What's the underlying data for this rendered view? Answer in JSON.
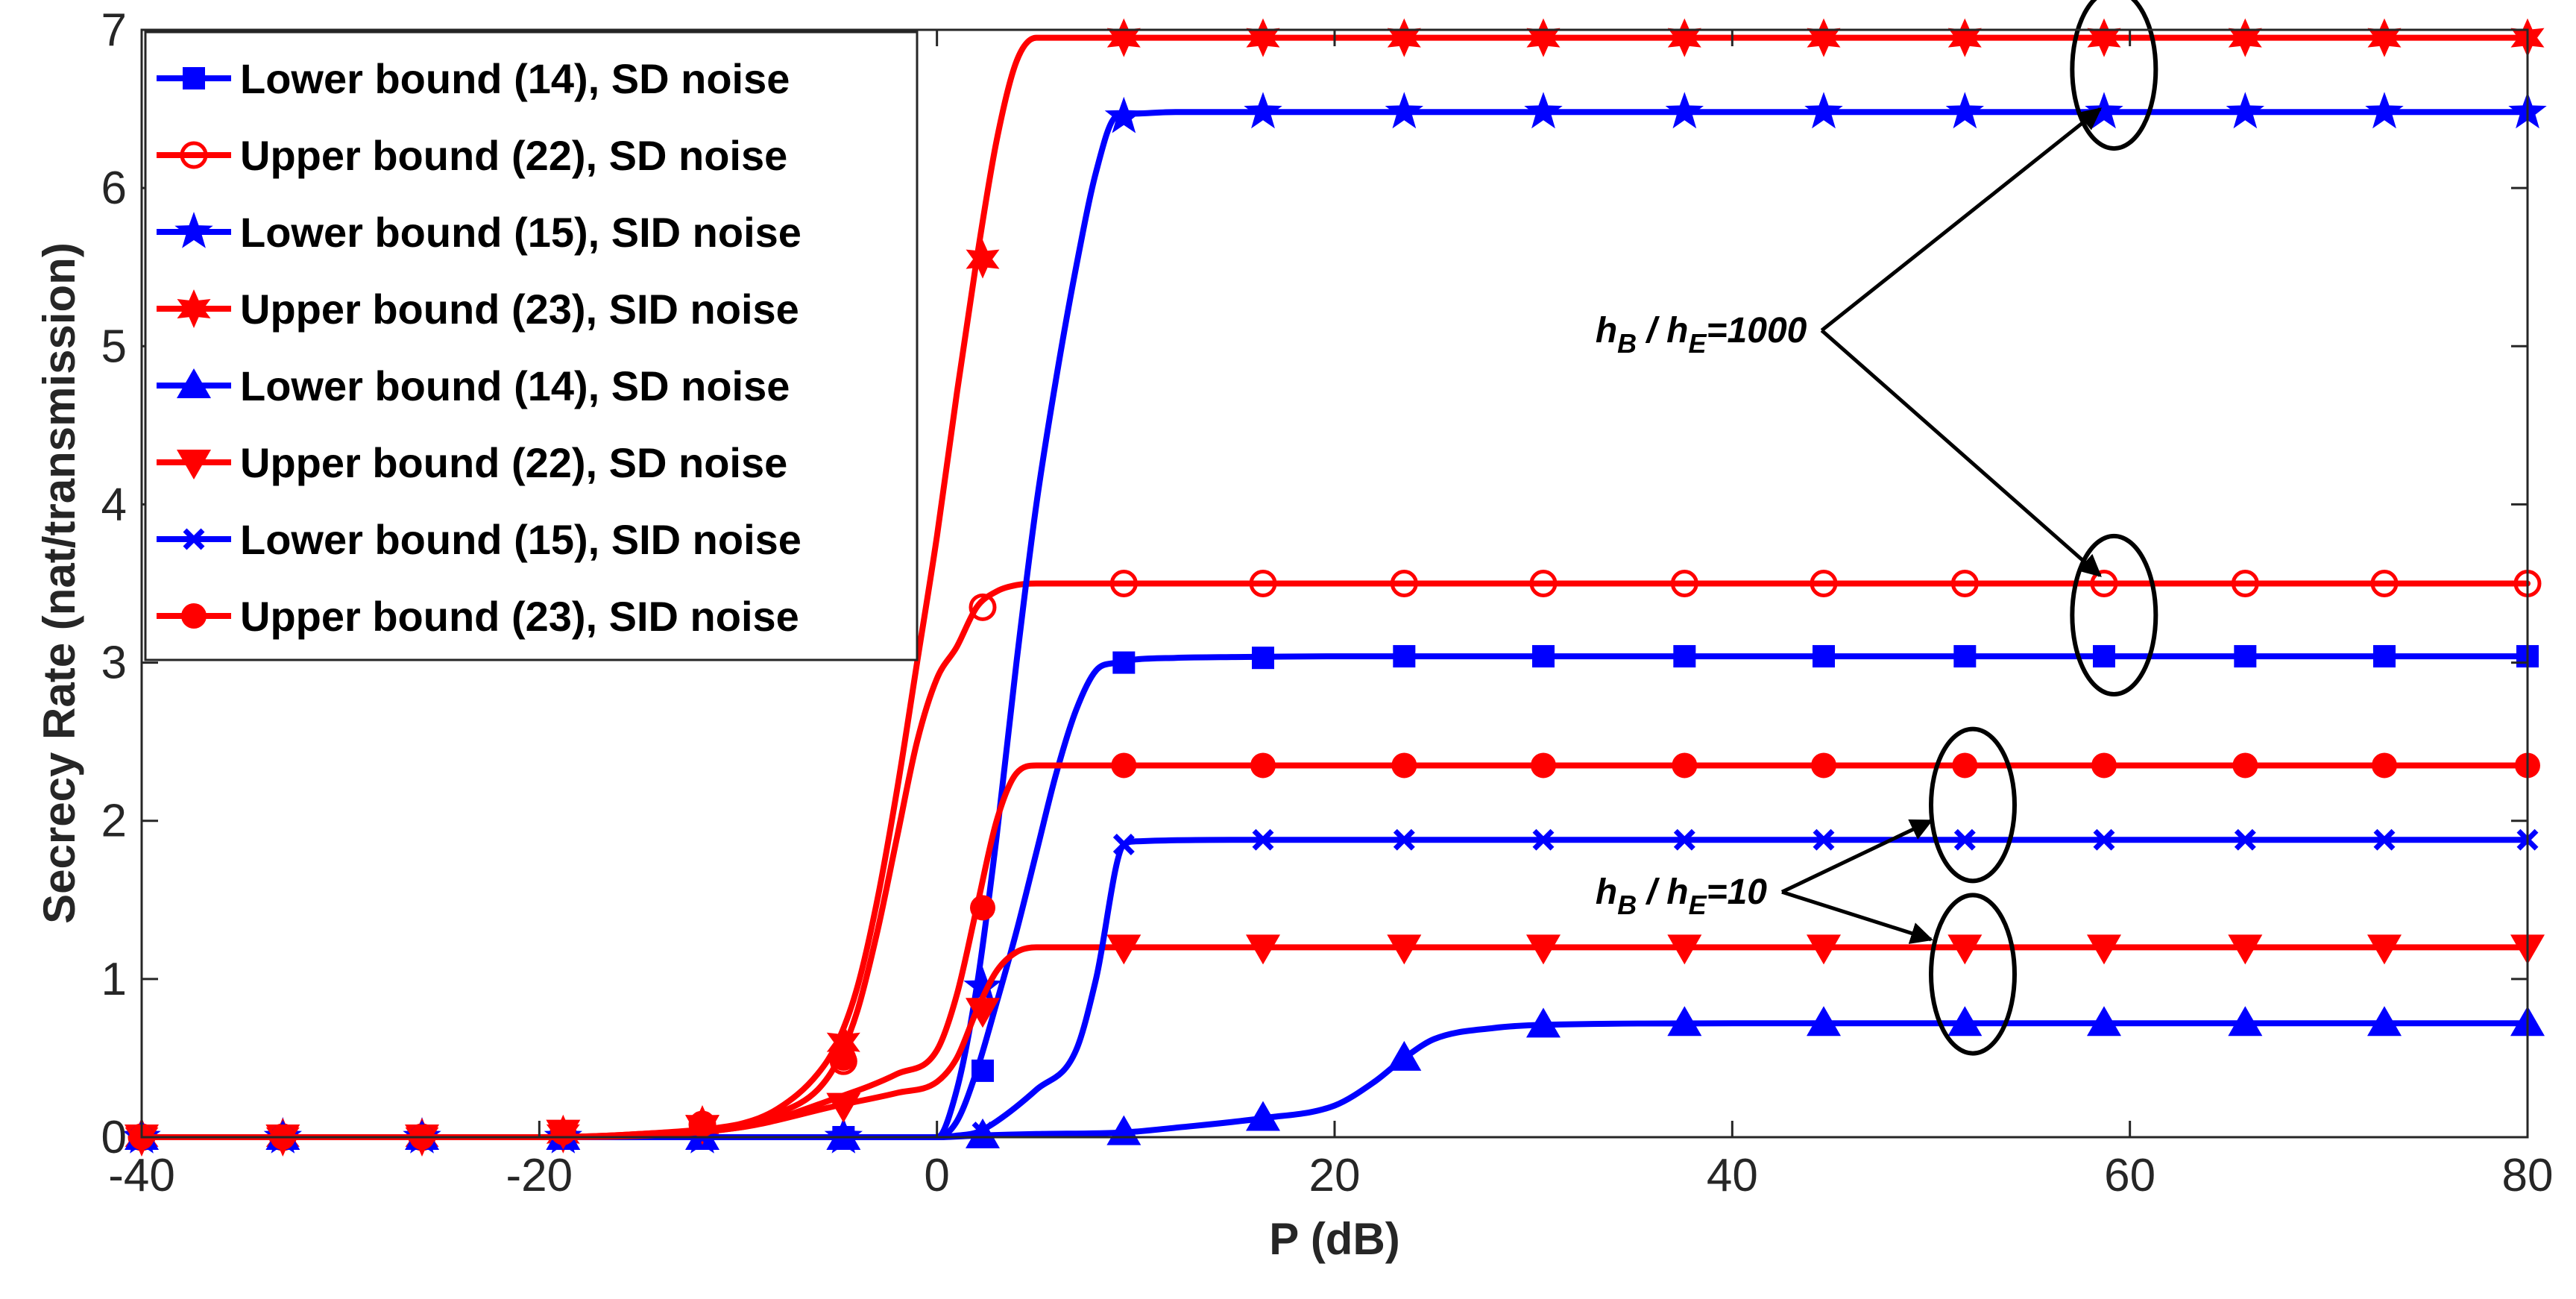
{
  "chart_data": {
    "type": "line",
    "title": "",
    "xlabel": "P (dB)",
    "ylabel": "Secrecy Rate (nat/transmission)",
    "xlim": [
      -40,
      80
    ],
    "ylim": [
      0,
      7
    ],
    "grid": false,
    "legend_position": "top-left",
    "xticks": [
      -40,
      -20,
      0,
      20,
      40,
      60,
      80
    ],
    "yticks": [
      0,
      1,
      2,
      3,
      4,
      5,
      6,
      7
    ],
    "xtick_labels": [
      "-40",
      "-20",
      "0",
      "20",
      "40",
      "60",
      "80"
    ],
    "ytick_labels": [
      "0",
      "1",
      "2",
      "3",
      "4",
      "5",
      "6",
      "7"
    ],
    "series": [
      {
        "name": "Lower bound (14), SD noise",
        "color": "#0000FF",
        "marker": "square",
        "x": [
          -40,
          -38,
          -36,
          -34,
          -32,
          -30,
          -28,
          -26,
          -24,
          -22,
          -20,
          -18,
          -16,
          -14,
          -12,
          -10,
          -8,
          -6,
          -4,
          -2,
          0,
          1,
          2,
          3,
          4,
          5,
          6,
          7,
          8,
          9,
          10,
          12,
          15,
          20,
          30,
          40,
          60,
          80
        ],
        "y": [
          0,
          0,
          0,
          0,
          0,
          0,
          0,
          0,
          0,
          0,
          0,
          0,
          0,
          0,
          0,
          0,
          0,
          0,
          0,
          0,
          0,
          0.1,
          0.42,
          0.85,
          1.3,
          1.8,
          2.3,
          2.7,
          2.95,
          3.0,
          3.02,
          3.03,
          3.035,
          3.04,
          3.04,
          3.04,
          3.04,
          3.04
        ],
        "marker_x": [
          -40,
          -32.9,
          -25.9,
          -18.8,
          -11.8,
          -4.7,
          2.3,
          9.4,
          16.4,
          23.5,
          30.5,
          37.6,
          44.6,
          51.7,
          58.7,
          65.8,
          72.8,
          80
        ],
        "marker_y": [
          0,
          0,
          0,
          0,
          0,
          0,
          0.42,
          3.0,
          3.03,
          3.04,
          3.04,
          3.04,
          3.04,
          3.04,
          3.04,
          3.04,
          3.04,
          3.04
        ]
      },
      {
        "name": "Upper bound (22), SD noise",
        "color": "#FF0000",
        "marker": "circle-open",
        "x": [
          -40,
          -30,
          -20,
          -15,
          -10,
          -8,
          -6,
          -5,
          -4,
          -3,
          -2,
          -1,
          0,
          1,
          2,
          3,
          4,
          5,
          6,
          8,
          10,
          20,
          40,
          60,
          80
        ],
        "y": [
          0,
          0,
          0,
          0.02,
          0.08,
          0.15,
          0.3,
          0.48,
          0.8,
          1.3,
          1.9,
          2.5,
          2.9,
          3.1,
          3.35,
          3.45,
          3.49,
          3.5,
          3.5,
          3.5,
          3.5,
          3.5,
          3.5,
          3.5,
          3.5
        ],
        "marker_x": [
          -40,
          -32.9,
          -25.9,
          -18.8,
          -11.8,
          -4.7,
          2.3,
          9.4,
          16.4,
          23.5,
          30.5,
          37.6,
          44.6,
          51.7,
          58.7,
          65.8,
          72.8,
          80
        ],
        "marker_y": [
          0,
          0,
          0,
          0.02,
          0.08,
          0.48,
          3.35,
          3.5,
          3.5,
          3.5,
          3.5,
          3.5,
          3.5,
          3.5,
          3.5,
          3.5,
          3.5,
          3.5
        ]
      },
      {
        "name": "Lower bound (15), SID noise",
        "color": "#0000FF",
        "marker": "star5",
        "x": [
          -40,
          -30,
          -20,
          -10,
          -5,
          0,
          1,
          2,
          3,
          4,
          5,
          6,
          7,
          8,
          9,
          10,
          12,
          15,
          20,
          40,
          60,
          80
        ],
        "y": [
          0,
          0,
          0,
          0,
          0,
          0,
          0.3,
          0.95,
          1.9,
          3.0,
          4.0,
          4.8,
          5.5,
          6.1,
          6.45,
          6.47,
          6.48,
          6.48,
          6.48,
          6.48,
          6.48,
          6.48
        ],
        "marker_x": [
          -40,
          -32.9,
          -25.9,
          -18.8,
          -11.8,
          -4.7,
          2.3,
          9.4,
          16.4,
          23.5,
          30.5,
          37.6,
          44.6,
          51.7,
          58.7,
          65.8,
          72.8,
          80
        ],
        "marker_y": [
          0,
          0,
          0,
          0,
          0,
          0,
          0.95,
          6.45,
          6.48,
          6.48,
          6.48,
          6.48,
          6.48,
          6.48,
          6.48,
          6.48,
          6.48,
          6.48
        ]
      },
      {
        "name": "Upper bound (23), SID noise",
        "color": "#FF0000",
        "marker": "star6",
        "x": [
          -40,
          -30,
          -20,
          -15,
          -10,
          -8,
          -6,
          -5,
          -4,
          -3,
          -2,
          -1,
          0,
          1,
          2,
          3,
          4,
          5,
          6,
          8,
          10,
          20,
          40,
          60,
          80
        ],
        "y": [
          0,
          0,
          0,
          0.02,
          0.08,
          0.18,
          0.4,
          0.6,
          0.95,
          1.5,
          2.2,
          3.0,
          3.8,
          4.7,
          5.55,
          6.3,
          6.8,
          6.95,
          6.95,
          6.95,
          6.95,
          6.95,
          6.95,
          6.95,
          6.95
        ],
        "marker_x": [
          -40,
          -32.9,
          -25.9,
          -18.8,
          -11.8,
          -4.7,
          2.3,
          9.4,
          16.4,
          23.5,
          30.5,
          37.6,
          44.6,
          51.7,
          58.7,
          65.8,
          72.8,
          80
        ],
        "marker_y": [
          0,
          0,
          0,
          0.02,
          0.08,
          0.6,
          5.55,
          6.95,
          6.95,
          6.95,
          6.95,
          6.95,
          6.95,
          6.95,
          6.95,
          6.95,
          6.95,
          6.95
        ]
      },
      {
        "name": "Lower bound (14), SD noise",
        "color": "#0000FF",
        "marker": "triangle-up",
        "x": [
          -40,
          -20,
          -5,
          0,
          2,
          5,
          9.4,
          12,
          16.4,
          20,
          22,
          23.5,
          25,
          28,
          30.5,
          40,
          60,
          80
        ],
        "y": [
          0,
          0,
          0,
          0,
          0.01,
          0.02,
          0.03,
          0.06,
          0.12,
          0.2,
          0.35,
          0.5,
          0.62,
          0.69,
          0.71,
          0.72,
          0.72,
          0.72
        ],
        "marker_x": [
          -40,
          -32.9,
          -25.9,
          -18.8,
          -11.8,
          -4.7,
          2.3,
          9.4,
          16.4,
          23.5,
          30.5,
          37.6,
          44.6,
          51.7,
          58.7,
          65.8,
          72.8,
          80
        ],
        "marker_y": [
          0,
          0,
          0,
          0,
          0,
          0,
          0.01,
          0.03,
          0.12,
          0.5,
          0.71,
          0.72,
          0.72,
          0.72,
          0.72,
          0.72,
          0.72,
          0.72
        ]
      },
      {
        "name": "Upper bound (22), SD noise",
        "color": "#FF0000",
        "marker": "triangle-down",
        "x": [
          -40,
          -30,
          -20,
          -10,
          -5,
          -2,
          0,
          1,
          2,
          3,
          4,
          5,
          6,
          8,
          10,
          20,
          40,
          60,
          80
        ],
        "y": [
          0,
          0,
          0,
          0.06,
          0.2,
          0.28,
          0.35,
          0.5,
          0.8,
          1.05,
          1.17,
          1.2,
          1.2,
          1.2,
          1.2,
          1.2,
          1.2,
          1.2,
          1.2
        ],
        "marker_x": [
          -40,
          -32.9,
          -25.9,
          -18.8,
          -11.8,
          -4.7,
          2.3,
          9.4,
          16.4,
          23.5,
          30.5,
          37.6,
          44.6,
          51.7,
          58.7,
          65.8,
          72.8,
          80
        ],
        "marker_y": [
          0,
          0,
          0,
          0.03,
          0.06,
          0.2,
          0.8,
          1.2,
          1.2,
          1.2,
          1.2,
          1.2,
          1.2,
          1.2,
          1.2,
          1.2,
          1.2,
          1.2
        ]
      },
      {
        "name": "Lower bound (15), SID noise",
        "color": "#0000FF",
        "marker": "x",
        "x": [
          -40,
          -20,
          -5,
          0,
          1,
          2,
          3,
          5,
          7,
          8,
          9.4,
          10,
          15,
          20,
          40,
          60,
          80
        ],
        "y": [
          0,
          0,
          0,
          0,
          0.01,
          0.03,
          0.1,
          0.3,
          0.55,
          1.0,
          1.85,
          1.87,
          1.88,
          1.88,
          1.88,
          1.88,
          1.88
        ],
        "marker_x": [
          -40,
          -32.9,
          -25.9,
          -18.8,
          -11.8,
          -4.7,
          2.3,
          9.4,
          16.4,
          23.5,
          30.5,
          37.6,
          44.6,
          51.7,
          58.7,
          65.8,
          72.8,
          80
        ],
        "marker_y": [
          0,
          0,
          0,
          0,
          0,
          0,
          0.03,
          1.85,
          1.88,
          1.88,
          1.88,
          1.88,
          1.88,
          1.88,
          1.88,
          1.88,
          1.88,
          1.88
        ]
      },
      {
        "name": "Upper bound (23), SID noise",
        "color": "#FF0000",
        "marker": "circle-filled",
        "x": [
          -40,
          -30,
          -20,
          -10,
          -5,
          -2,
          0,
          1,
          2,
          3,
          4,
          5,
          6,
          8,
          10,
          20,
          40,
          60,
          80
        ],
        "y": [
          0,
          0,
          0,
          0.06,
          0.25,
          0.4,
          0.55,
          0.9,
          1.45,
          2.0,
          2.3,
          2.35,
          2.35,
          2.35,
          2.35,
          2.35,
          2.35,
          2.35,
          2.35
        ],
        "marker_x": [
          -40,
          -32.9,
          -25.9,
          -18.8,
          -11.8,
          -4.7,
          2.3,
          9.4,
          16.4,
          23.5,
          30.5,
          37.6,
          44.6,
          51.7,
          58.7,
          65.8,
          72.8,
          80
        ],
        "marker_y": [
          0,
          0,
          0,
          0.03,
          0.08,
          0.5,
          1.45,
          2.35,
          2.35,
          2.35,
          2.35,
          2.35,
          2.35,
          2.35,
          2.35,
          2.35,
          2.35,
          2.35
        ]
      }
    ],
    "annotations": [
      {
        "text_main": "h",
        "sub1": "B",
        "mid": " / h",
        "sub2": "E",
        "tail": "=1000",
        "anchor_x": 44.5,
        "anchor_y": 5.1,
        "arrows_to": [
          {
            "x": 58.5,
            "y": 6.5
          },
          {
            "x": 58.5,
            "y": 3.55
          }
        ],
        "ellipses": [
          {
            "x": 59.2,
            "y": 6.75,
            "rx": 2.1,
            "ry": 0.5
          },
          {
            "x": 59.2,
            "y": 3.3,
            "rx": 2.1,
            "ry": 0.5
          }
        ]
      },
      {
        "text_main": "h",
        "sub1": "B",
        "mid": " / h",
        "sub2": "E",
        "tail": "=10",
        "anchor_x": 42.5,
        "anchor_y": 1.55,
        "arrows_to": [
          {
            "x": 50.0,
            "y": 2.0
          },
          {
            "x": 50.0,
            "y": 1.25
          }
        ],
        "ellipses": [
          {
            "x": 52.1,
            "y": 2.1,
            "rx": 2.1,
            "ry": 0.48
          },
          {
            "x": 52.1,
            "y": 1.03,
            "rx": 2.1,
            "ry": 0.5
          }
        ]
      }
    ]
  }
}
